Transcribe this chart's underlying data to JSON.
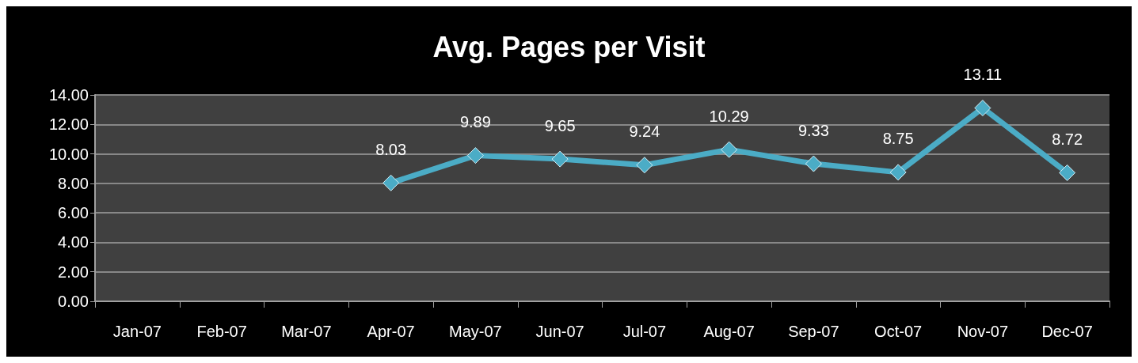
{
  "chart_data": {
    "type": "line",
    "title": "Avg. Pages per Visit",
    "categories": [
      "Jan-07",
      "Feb-07",
      "Mar-07",
      "Apr-07",
      "May-07",
      "Jun-07",
      "Jul-07",
      "Aug-07",
      "Sep-07",
      "Oct-07",
      "Nov-07",
      "Dec-07"
    ],
    "series": [
      {
        "color": "#4bacc6",
        "values": [
          null,
          null,
          null,
          8.03,
          9.89,
          9.65,
          9.24,
          10.29,
          9.33,
          8.75,
          13.11,
          8.72
        ]
      }
    ],
    "ylim": [
      0,
      14
    ],
    "yticks": [
      {
        "value": 0,
        "label": "0.00"
      },
      {
        "value": 2,
        "label": "2.00"
      },
      {
        "value": 4,
        "label": "4.00"
      },
      {
        "value": 6,
        "label": "6.00"
      },
      {
        "value": 8,
        "label": "8.00"
      },
      {
        "value": 10,
        "label": "10.00"
      },
      {
        "value": 12,
        "label": "12.00"
      },
      {
        "value": 14,
        "label": "14.00"
      }
    ],
    "grid": "y",
    "marker": "diamond",
    "line_style": "solid",
    "data_labels": true
  }
}
